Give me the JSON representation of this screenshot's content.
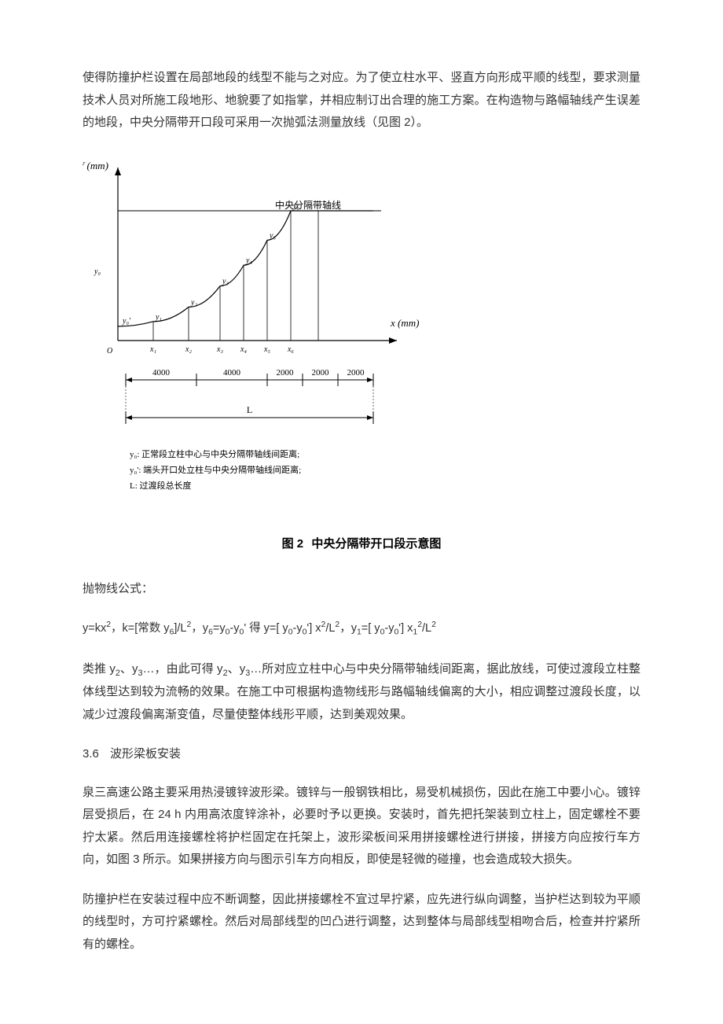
{
  "para1": "使得防撞护栏设置在局部地段的线型不能与之对应。为了使立柱水平、竖直方向形成平顺的线型，要求测量技术人员对所施工段地形、地貌要了如指掌，并相应制订出合理的施工方案。在构造物与路幅轴线产生误差的地段，中央分隔带开口段可采用一次抛弧法测量放线（见图 2）。",
  "figure": {
    "caption_prefix": "图 2",
    "caption_text": "中央分隔带开口段示意图",
    "y_axis_label": "Y (mm)",
    "x_axis_label": "x (mm)",
    "curve_label": "中央分隔带轴线",
    "y0_label": "y₀",
    "origin_label": "O",
    "x_ticks": [
      "x₁",
      "x₂",
      "x₃",
      "x₄",
      "x₅",
      "x₆"
    ],
    "y_pts": [
      "y₀'",
      "y₁",
      "y₂",
      "y₃",
      "y₄",
      "y₅",
      "y₆"
    ],
    "dim_values": [
      "4000",
      "4000",
      "2000",
      "2000",
      "2000"
    ],
    "L_label": "L",
    "legend1": "y₀: 正常段立柱中心与中央分隔带轴线间距离;",
    "legend2": "y₀': 端头开口处立柱与中央分隔带轴线间距离;",
    "legend3": "L: 过渡段总长度",
    "colors": {
      "stroke": "#000000",
      "bg": "#ffffff"
    },
    "f_axis": 13,
    "f_tick": 10,
    "f_legend": 11
  },
  "para2": "抛物线公式：",
  "formula_k": "，k=[常数 y",
  "formula_tail1": "]/L",
  "formula_tail2": "，y",
  "formula_tail3": "=y",
  "formula_tail4": "-y",
  "formula_tail5": "  得 y=[ y",
  "formula_tail6": "] x",
  "formula_tail7": "/L",
  "formula_tail8": "，y",
  "formula_tail9": "=[ y",
  "formula_tail10": "] x",
  "para3_a": "类推 y",
  "para3_b": "、y",
  "para3_c": "…，由此可得 y",
  "para3_d": "…所对应立柱中心与中央分隔带轴线间距离，据此放线，可使过渡段立柱整体线型达到较为流畅的效果。在施工中可根据构造物线形与路幅轴线偏离的大小，相应调整过渡段长度，以减少过渡段偏离渐变值，尽量使整体线形平顺，达到美观效果。",
  "section_num": "3.6",
  "section_title": "波形梁板安装",
  "para4": "泉三高速公路主要采用热浸镀锌波形梁。镀锌与一般钢铁相比，易受机械损伤，因此在施工中要小心。镀锌层受损后，在 24 h 内用高浓度锌涂补，必要时予以更换。安装时，首先把托架装到立柱上，固定螺栓不要拧太紧。然后用连接螺栓将护栏固定在托架上，波形梁板间采用拼接螺栓进行拼接，拼接方向应按行车方向，如图 3 所示。如果拼接方向与图示引车方向相反，即使是轻微的碰撞，也会造成较大损失。",
  "para5": "防撞护栏在安装过程中应不断调整，因此拼接螺栓不宜过早拧紧，应先进行纵向调整，当护栏达到较为平顺的线型时，方可拧紧螺栓。然后对局部线型的凹凸进行调整，达到整体与局部线型相吻合后，检查并拧紧所有的螺栓。"
}
